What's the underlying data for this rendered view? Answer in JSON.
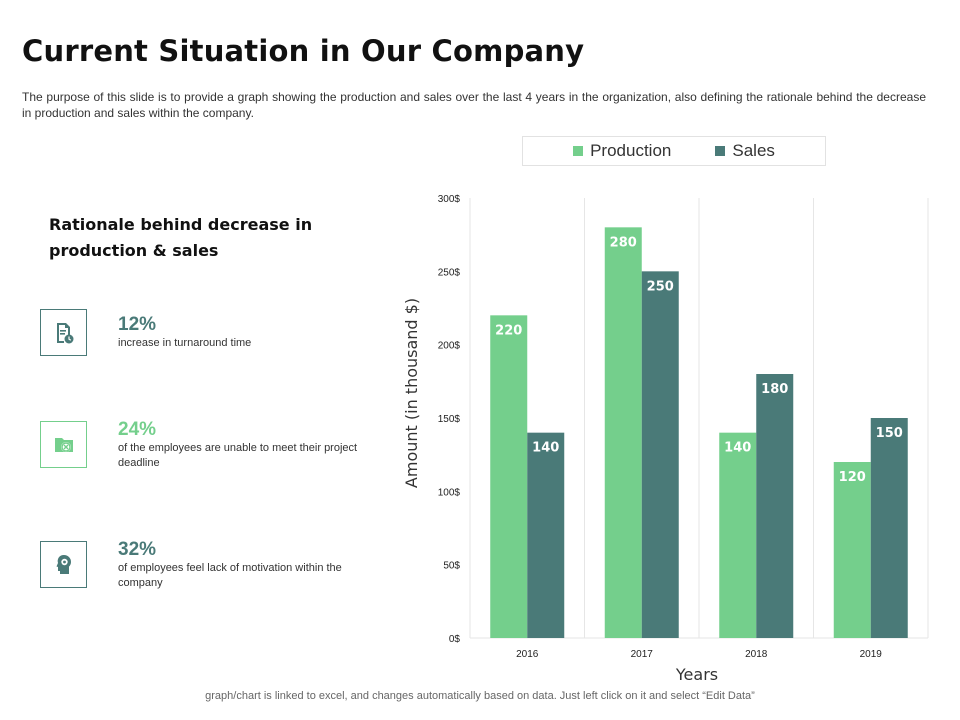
{
  "page": {
    "title": "Current Situation in Our Company",
    "description": "The purpose of this slide is to provide a graph showing the production and sales over the last 4 years in the organization, also defining the rationale behind the decrease in production and sales within the company.",
    "footer": "graph/chart is linked to excel, and changes automatically based on data. Just left click on it and select “Edit Data”"
  },
  "rationale": {
    "heading": "Rationale behind decrease in production & sales",
    "items": [
      {
        "percent": "12%",
        "text": "increase in turnaround time",
        "icon": "document-clock-icon",
        "color": "#4a7a78"
      },
      {
        "percent": "24%",
        "text": "of the employees are unable to meet their project deadline",
        "icon": "folder-cancel-icon",
        "color": "#74cf8c"
      },
      {
        "percent": "32%",
        "text": "of employees feel lack of motivation within the company",
        "icon": "head-target-icon",
        "color": "#4a7a78"
      }
    ]
  },
  "colors": {
    "production": "#74cf8c",
    "sales": "#4a7a78",
    "grid": "#e6e6e6"
  },
  "chart_data": {
    "type": "bar",
    "title": "",
    "categories": [
      "2016",
      "2017",
      "2018",
      "2019"
    ],
    "series": [
      {
        "name": "Production",
        "values": [
          220,
          280,
          140,
          120
        ]
      },
      {
        "name": "Sales",
        "values": [
          140,
          250,
          180,
          150
        ]
      }
    ],
    "xlabel": "Years",
    "ylabel": "Amount (in thousand $)",
    "ylim": [
      0,
      300
    ],
    "yticks": [
      0,
      50,
      100,
      150,
      200,
      250,
      300
    ],
    "ytick_labels": [
      "0$",
      "50$",
      "100$",
      "150$",
      "200$",
      "250$",
      "300$"
    ],
    "legend_position": "top",
    "grid": "vertical"
  }
}
